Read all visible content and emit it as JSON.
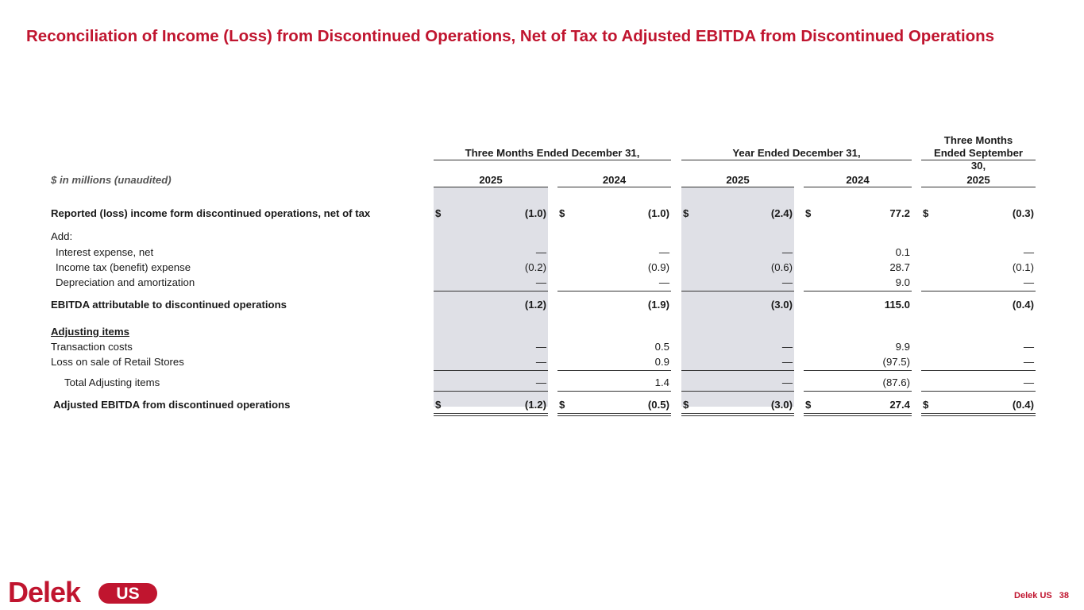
{
  "title": "Reconciliation of Income (Loss) from Discontinued Operations, Net of Tax to Adjusted EBITDA from Discontinued Operations",
  "table": {
    "units_label": "$ in millions (unaudited)",
    "groups": [
      "Three Months Ended December 31,",
      "Year Ended December 31,",
      "Three Months Ended September 30,"
    ],
    "years": [
      "2025",
      "2024",
      "2025",
      "2024",
      "2025"
    ],
    "rows": [
      {
        "label": "Reported (loss) income form discontinued operations, net of tax",
        "values": [
          "(1.0)",
          "(1.0)",
          "(2.4)",
          "77.2",
          "(0.3)"
        ]
      },
      {
        "label": "Add:"
      },
      {
        "label": "Interest expense, net",
        "values": [
          "—",
          "—",
          "—",
          "0.1",
          "—"
        ]
      },
      {
        "label": "Income tax (benefit) expense",
        "values": [
          "(0.2)",
          "(0.9)",
          "(0.6)",
          "28.7",
          "(0.1)"
        ]
      },
      {
        "label": "Depreciation and amortization",
        "values": [
          "—",
          "—",
          "—",
          "9.0",
          "—"
        ]
      },
      {
        "label": "EBITDA attributable to discontinued operations",
        "values": [
          "(1.2)",
          "(1.9)",
          "(3.0)",
          "115.0",
          "(0.4)"
        ]
      },
      {
        "label": "Adjusting items"
      },
      {
        "label": "Transaction costs",
        "values": [
          "—",
          "0.5",
          "—",
          "9.9",
          "—"
        ]
      },
      {
        "label": "Loss on sale of Retail Stores",
        "values": [
          "—",
          "0.9",
          "—",
          "(97.5)",
          "—"
        ]
      },
      {
        "label": "Total Adjusting items",
        "values": [
          "—",
          "1.4",
          "—",
          "(87.6)",
          "—"
        ]
      },
      {
        "label": "Adjusted EBITDA from discontinued operations",
        "values": [
          "(1.2)",
          "(0.5)",
          "(3.0)",
          "27.4",
          "(0.4)"
        ]
      }
    ],
    "currency": "$"
  },
  "footer": {
    "logo_text": "Delek US",
    "company": "Delek US",
    "page_number": "38"
  },
  "colors": {
    "brand_red": "#c0152f",
    "column_shade": "#dfe0e6"
  }
}
